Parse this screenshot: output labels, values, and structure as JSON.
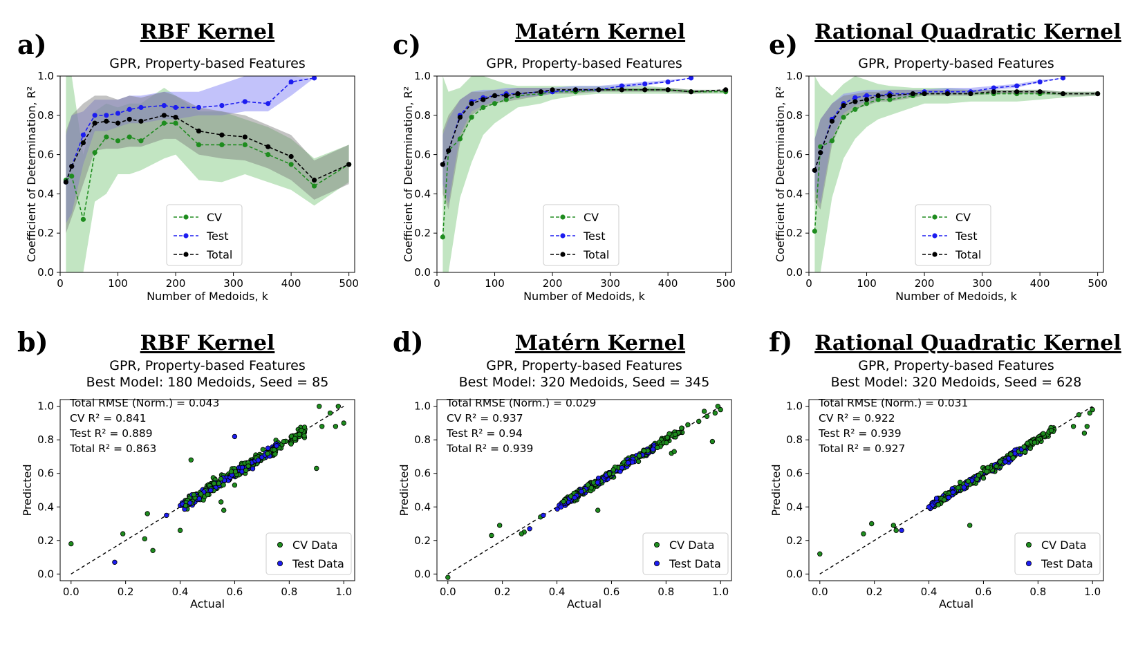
{
  "colors": {
    "cv": "#1e8c1e",
    "test": "#1c1cf0",
    "total": "#000000",
    "cv_band": "#8fcf8f",
    "test_band": "#8f8ff5",
    "total_band": "#7a7a7a"
  },
  "panel_labels": [
    "a)",
    "b)",
    "c)",
    "d)",
    "e)",
    "f)"
  ],
  "chart_data": [
    {
      "type": "line",
      "id": "a",
      "kernel_title": "RBF Kernel",
      "title": "GPR, Property-based Features",
      "xlabel": "Number of Medoids, k",
      "ylabel": "Coefficient of Determination, R²",
      "xlim": [
        0,
        510
      ],
      "ylim": [
        0,
        1
      ],
      "xticks": [
        0,
        100,
        200,
        300,
        400,
        500
      ],
      "yticks": [
        0.0,
        0.2,
        0.4,
        0.6,
        0.8,
        1.0
      ],
      "legend": [
        "CV",
        "Test",
        "Total"
      ],
      "legend_position": "lower-center",
      "series": [
        {
          "name": "CV",
          "x": [
            10,
            20,
            40,
            60,
            80,
            100,
            120,
            140,
            180,
            200,
            240,
            280,
            320,
            360,
            400,
            440,
            500
          ],
          "values": [
            0.47,
            0.49,
            0.27,
            0.61,
            0.69,
            0.67,
            0.69,
            0.67,
            0.76,
            0.76,
            0.65,
            0.65,
            0.65,
            0.6,
            0.55,
            0.44,
            0.55
          ],
          "lower": [
            0.0,
            0.0,
            0.0,
            0.36,
            0.4,
            0.5,
            0.5,
            0.52,
            0.58,
            0.6,
            0.47,
            0.46,
            0.5,
            0.46,
            0.42,
            0.34,
            0.46
          ],
          "upper": [
            1.0,
            1.0,
            0.6,
            0.82,
            0.86,
            0.84,
            0.86,
            0.86,
            0.94,
            0.9,
            0.82,
            0.82,
            0.78,
            0.74,
            0.68,
            0.58,
            0.65
          ]
        },
        {
          "name": "Test",
          "x": [
            10,
            20,
            40,
            60,
            80,
            100,
            120,
            140,
            180,
            200,
            240,
            280,
            320,
            360,
            400,
            440
          ],
          "values": [
            0.46,
            0.54,
            0.7,
            0.8,
            0.8,
            0.81,
            0.83,
            0.84,
            0.85,
            0.84,
            0.84,
            0.85,
            0.87,
            0.86,
            0.97,
            0.99
          ],
          "lower": [
            0.25,
            0.3,
            0.55,
            0.72,
            0.72,
            0.74,
            0.76,
            0.76,
            0.78,
            0.78,
            0.8,
            0.8,
            0.82,
            0.82,
            0.9,
            0.99
          ],
          "upper": [
            0.7,
            0.8,
            0.82,
            0.88,
            0.88,
            0.88,
            0.9,
            0.9,
            0.92,
            0.92,
            0.92,
            0.96,
            1.0,
            1.0,
            1.0,
            0.99
          ]
        },
        {
          "name": "Total",
          "x": [
            10,
            20,
            40,
            60,
            80,
            100,
            120,
            140,
            180,
            200,
            240,
            280,
            320,
            360,
            400,
            440,
            500
          ],
          "values": [
            0.46,
            0.54,
            0.66,
            0.76,
            0.77,
            0.76,
            0.78,
            0.77,
            0.8,
            0.79,
            0.72,
            0.7,
            0.69,
            0.64,
            0.59,
            0.47,
            0.55
          ],
          "lower": [
            0.2,
            0.28,
            0.45,
            0.62,
            0.63,
            0.63,
            0.64,
            0.64,
            0.68,
            0.68,
            0.6,
            0.58,
            0.57,
            0.53,
            0.47,
            0.37,
            0.45
          ],
          "upper": [
            0.72,
            0.8,
            0.86,
            0.9,
            0.9,
            0.88,
            0.9,
            0.89,
            0.92,
            0.9,
            0.84,
            0.82,
            0.8,
            0.75,
            0.7,
            0.57,
            0.65
          ]
        }
      ]
    },
    {
      "type": "scatter",
      "id": "b",
      "kernel_title": "RBF Kernel",
      "title": "GPR, Property-based Features",
      "subtitle": "Best Model: 180 Medoids, Seed = 85",
      "xlabel": "Actual",
      "ylabel": "Predicted",
      "xlim": [
        -0.04,
        1.04
      ],
      "ylim": [
        -0.04,
        1.04
      ],
      "xticks": [
        0.0,
        0.2,
        0.4,
        0.6,
        0.8,
        1.0
      ],
      "yticks": [
        0.0,
        0.2,
        0.4,
        0.6,
        0.8,
        1.0
      ],
      "annotations": [
        "Total RMSE (Norm.) = 0.043",
        "CV R² = 0.841",
        "Test R² = 0.889",
        "Total R² = 0.863"
      ],
      "legend": [
        "CV Data",
        "Test Data"
      ],
      "legend_position": "lower-right",
      "seed": 85,
      "spread": 0.035,
      "cv_outliers": [
        [
          0.0,
          0.18
        ],
        [
          0.19,
          0.24
        ],
        [
          0.27,
          0.21
        ],
        [
          0.28,
          0.36
        ],
        [
          0.3,
          0.14
        ],
        [
          0.4,
          0.26
        ],
        [
          0.44,
          0.68
        ],
        [
          0.55,
          0.43
        ],
        [
          0.56,
          0.38
        ],
        [
          0.6,
          0.53
        ],
        [
          0.66,
          0.68
        ],
        [
          0.9,
          0.63
        ],
        [
          0.92,
          0.88
        ],
        [
          0.91,
          1.0
        ],
        [
          0.95,
          0.96
        ],
        [
          0.97,
          0.88
        ],
        [
          1.0,
          0.9
        ],
        [
          0.98,
          1.0
        ]
      ],
      "test_outliers": [
        [
          0.16,
          0.07
        ],
        [
          0.35,
          0.35
        ],
        [
          0.6,
          0.82
        ]
      ]
    },
    {
      "type": "line",
      "id": "c",
      "kernel_title": "Matérn Kernel",
      "title": "GPR, Property-based Features",
      "xlabel": "Number of Medoids, k",
      "ylabel": "Coefficient of Determination, R²",
      "xlim": [
        0,
        510
      ],
      "ylim": [
        0,
        1
      ],
      "xticks": [
        0,
        100,
        200,
        300,
        400,
        500
      ],
      "yticks": [
        0.0,
        0.2,
        0.4,
        0.6,
        0.8,
        1.0
      ],
      "legend": [
        "CV",
        "Test",
        "Total"
      ],
      "legend_position": "lower-center",
      "series": [
        {
          "name": "CV",
          "x": [
            10,
            20,
            40,
            60,
            80,
            100,
            120,
            140,
            180,
            200,
            240,
            280,
            320,
            360,
            400,
            440,
            500
          ],
          "values": [
            0.18,
            0.62,
            0.68,
            0.79,
            0.84,
            0.86,
            0.88,
            0.9,
            0.91,
            0.92,
            0.92,
            0.93,
            0.93,
            0.93,
            0.93,
            0.92,
            0.92
          ],
          "lower": [
            0.0,
            0.0,
            0.38,
            0.56,
            0.7,
            0.76,
            0.8,
            0.84,
            0.86,
            0.88,
            0.9,
            0.91,
            0.91,
            0.91,
            0.91,
            0.91,
            0.91
          ],
          "upper": [
            1.0,
            0.92,
            0.94,
            1.0,
            1.0,
            0.98,
            0.96,
            0.95,
            0.95,
            0.95,
            0.95,
            0.95,
            0.95,
            0.95,
            0.94,
            0.93,
            0.93
          ]
        },
        {
          "name": "Test",
          "x": [
            10,
            20,
            40,
            60,
            80,
            100,
            120,
            140,
            180,
            200,
            240,
            280,
            320,
            360,
            400,
            440
          ],
          "values": [
            0.55,
            0.62,
            0.8,
            0.87,
            0.89,
            0.9,
            0.91,
            0.91,
            0.92,
            0.92,
            0.93,
            0.93,
            0.95,
            0.96,
            0.97,
            0.99
          ],
          "lower": [
            0.45,
            0.35,
            0.7,
            0.82,
            0.85,
            0.87,
            0.88,
            0.89,
            0.9,
            0.91,
            0.92,
            0.92,
            0.94,
            0.95,
            0.97,
            0.99
          ],
          "upper": [
            0.7,
            0.78,
            0.88,
            0.92,
            0.93,
            0.93,
            0.94,
            0.94,
            0.94,
            0.94,
            0.95,
            0.95,
            0.96,
            0.97,
            0.98,
            0.99
          ]
        },
        {
          "name": "Total",
          "x": [
            10,
            20,
            40,
            60,
            80,
            100,
            120,
            140,
            180,
            200,
            240,
            280,
            320,
            360,
            400,
            440,
            500
          ],
          "values": [
            0.55,
            0.62,
            0.79,
            0.86,
            0.88,
            0.9,
            0.9,
            0.91,
            0.92,
            0.93,
            0.93,
            0.93,
            0.93,
            0.93,
            0.93,
            0.92,
            0.93
          ],
          "lower": [
            0.4,
            0.32,
            0.66,
            0.8,
            0.84,
            0.86,
            0.87,
            0.88,
            0.9,
            0.91,
            0.91,
            0.92,
            0.92,
            0.92,
            0.92,
            0.91,
            0.92
          ],
          "upper": [
            0.72,
            0.8,
            0.88,
            0.92,
            0.92,
            0.93,
            0.93,
            0.94,
            0.94,
            0.94,
            0.94,
            0.94,
            0.94,
            0.94,
            0.94,
            0.93,
            0.93
          ]
        }
      ]
    },
    {
      "type": "scatter",
      "id": "d",
      "kernel_title": "Matérn Kernel",
      "title": "GPR, Property-based Features",
      "subtitle": "Best Model: 320 Medoids, Seed = 345",
      "xlabel": "Actual",
      "ylabel": "Predicted",
      "xlim": [
        -0.04,
        1.04
      ],
      "ylim": [
        -0.04,
        1.04
      ],
      "xticks": [
        0.0,
        0.2,
        0.4,
        0.6,
        0.8,
        1.0
      ],
      "yticks": [
        0.0,
        0.2,
        0.4,
        0.6,
        0.8,
        1.0
      ],
      "annotations": [
        "Total RMSE (Norm.) = 0.029",
        "CV R² = 0.937",
        "Test R² = 0.94",
        "Total R² = 0.939"
      ],
      "legend": [
        "CV Data",
        "Test Data"
      ],
      "legend_position": "lower-right",
      "seed": 345,
      "spread": 0.025,
      "cv_outliers": [
        [
          0.0,
          -0.02
        ],
        [
          0.16,
          0.23
        ],
        [
          0.19,
          0.29
        ],
        [
          0.27,
          0.24
        ],
        [
          0.28,
          0.25
        ],
        [
          0.34,
          0.34
        ],
        [
          0.55,
          0.38
        ],
        [
          0.82,
          0.72
        ],
        [
          0.83,
          0.73
        ],
        [
          0.88,
          0.89
        ],
        [
          0.92,
          0.91
        ],
        [
          0.94,
          0.97
        ],
        [
          0.95,
          0.94
        ],
        [
          0.98,
          0.96
        ],
        [
          0.99,
          1.0
        ],
        [
          1.0,
          0.98
        ],
        [
          0.97,
          0.79
        ]
      ],
      "test_outliers": [
        [
          0.3,
          0.27
        ],
        [
          0.35,
          0.35
        ]
      ]
    },
    {
      "type": "line",
      "id": "e",
      "kernel_title": "Rational Quadratic Kernel",
      "title": "GPR, Property-based Features",
      "xlabel": "Number of Medoids, k",
      "ylabel": "Coefficient of Determination, R²",
      "xlim": [
        0,
        510
      ],
      "ylim": [
        0,
        1
      ],
      "xticks": [
        0,
        100,
        200,
        300,
        400,
        500
      ],
      "yticks": [
        0.0,
        0.2,
        0.4,
        0.6,
        0.8,
        1.0
      ],
      "legend": [
        "CV",
        "Test",
        "Total"
      ],
      "legend_position": "lower-center",
      "series": [
        {
          "name": "CV",
          "x": [
            10,
            20,
            40,
            60,
            80,
            100,
            120,
            140,
            180,
            200,
            240,
            280,
            320,
            360,
            400,
            440,
            500
          ],
          "values": [
            0.21,
            0.64,
            0.67,
            0.79,
            0.83,
            0.86,
            0.88,
            0.88,
            0.9,
            0.91,
            0.91,
            0.91,
            0.91,
            0.91,
            0.91,
            0.91,
            0.91
          ],
          "lower": [
            0.0,
            0.0,
            0.38,
            0.58,
            0.68,
            0.74,
            0.78,
            0.8,
            0.84,
            0.86,
            0.86,
            0.87,
            0.87,
            0.87,
            0.88,
            0.89,
            0.9
          ],
          "upper": [
            1.0,
            0.95,
            0.9,
            0.96,
            1.0,
            0.98,
            0.96,
            0.95,
            0.94,
            0.94,
            0.94,
            0.93,
            0.93,
            0.93,
            0.93,
            0.92,
            0.92
          ]
        },
        {
          "name": "Test",
          "x": [
            10,
            20,
            40,
            60,
            80,
            100,
            120,
            140,
            180,
            200,
            240,
            280,
            320,
            360,
            400,
            440
          ],
          "values": [
            0.52,
            0.61,
            0.78,
            0.86,
            0.89,
            0.9,
            0.9,
            0.91,
            0.91,
            0.92,
            0.92,
            0.92,
            0.94,
            0.95,
            0.97,
            0.99
          ],
          "lower": [
            0.42,
            0.35,
            0.68,
            0.81,
            0.85,
            0.87,
            0.88,
            0.89,
            0.9,
            0.91,
            0.91,
            0.91,
            0.93,
            0.94,
            0.97,
            0.99
          ],
          "upper": [
            0.68,
            0.78,
            0.86,
            0.91,
            0.92,
            0.93,
            0.93,
            0.93,
            0.93,
            0.93,
            0.94,
            0.94,
            0.95,
            0.96,
            0.98,
            0.99
          ]
        },
        {
          "name": "Total",
          "x": [
            10,
            20,
            40,
            60,
            80,
            100,
            120,
            140,
            180,
            200,
            240,
            280,
            320,
            360,
            400,
            440,
            500
          ],
          "values": [
            0.52,
            0.61,
            0.77,
            0.85,
            0.87,
            0.88,
            0.9,
            0.9,
            0.91,
            0.91,
            0.91,
            0.91,
            0.92,
            0.92,
            0.92,
            0.91,
            0.91
          ],
          "lower": [
            0.36,
            0.32,
            0.65,
            0.79,
            0.83,
            0.85,
            0.87,
            0.87,
            0.89,
            0.9,
            0.9,
            0.9,
            0.91,
            0.91,
            0.91,
            0.9,
            0.9
          ],
          "upper": [
            0.68,
            0.78,
            0.86,
            0.9,
            0.91,
            0.92,
            0.92,
            0.93,
            0.93,
            0.93,
            0.93,
            0.93,
            0.93,
            0.93,
            0.93,
            0.92,
            0.92
          ]
        }
      ]
    },
    {
      "type": "scatter",
      "id": "f",
      "kernel_title": "Rational Quadratic Kernel",
      "title": "GPR, Property-based Features",
      "subtitle": "Best Model: 320 Medoids, Seed = 628",
      "xlabel": "Actual",
      "ylabel": "Predicted",
      "xlim": [
        -0.04,
        1.04
      ],
      "ylim": [
        -0.04,
        1.04
      ],
      "xticks": [
        0.0,
        0.2,
        0.4,
        0.6,
        0.8,
        1.0
      ],
      "yticks": [
        0.0,
        0.2,
        0.4,
        0.6,
        0.8,
        1.0
      ],
      "annotations": [
        "Total RMSE (Norm.) = 0.031",
        "CV R² = 0.922",
        "Test R² = 0.939",
        "Total R² = 0.927"
      ],
      "legend": [
        "CV Data",
        "Test Data"
      ],
      "legend_position": "lower-right",
      "seed": 628,
      "spread": 0.027,
      "cv_outliers": [
        [
          0.0,
          0.12
        ],
        [
          0.16,
          0.24
        ],
        [
          0.19,
          0.3
        ],
        [
          0.27,
          0.29
        ],
        [
          0.28,
          0.26
        ],
        [
          0.55,
          0.29
        ],
        [
          0.93,
          0.88
        ],
        [
          0.95,
          0.95
        ],
        [
          0.97,
          0.84
        ],
        [
          0.98,
          0.88
        ],
        [
          1.0,
          0.98
        ],
        [
          0.99,
          0.96
        ]
      ],
      "test_outliers": [
        [
          0.3,
          0.26
        ],
        [
          0.4,
          0.4
        ]
      ]
    }
  ]
}
